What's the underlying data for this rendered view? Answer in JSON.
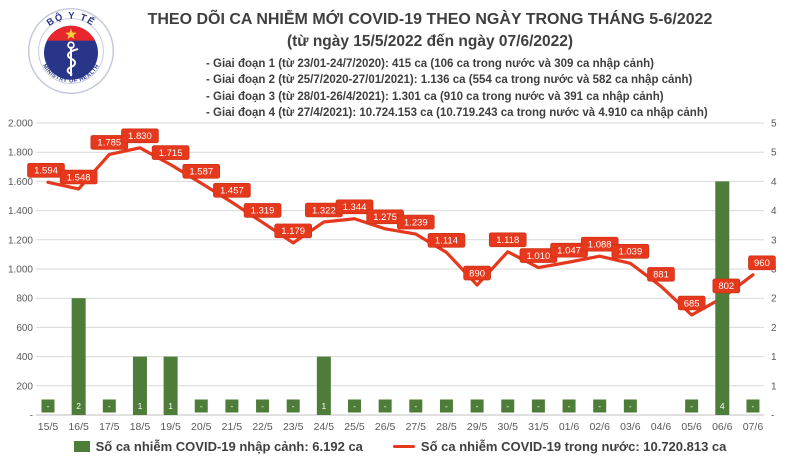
{
  "header": {
    "title_line1": "THEO DÕI CA NHIỄM MỚI COVID-19 THEO NGÀY TRONG THÁNG 5-6/2022",
    "title_line2": "(từ ngày 15/5/2022 đến ngày 07/6/2022)",
    "bullets": [
      "- Giai đoạn 1 (từ 23/01-24/7/2020): 415 ca (106 ca trong nước và 309 ca nhập cảnh)",
      "- Giai đoạn 2 (từ 25/7/2020-27/01/2021): 1.136 ca (554 ca trong nước và 582 ca nhập cảnh)",
      "- Giai đoạn 3 (từ 28/01-26/4/2021): 1.301 ca (910 ca trong nước và 391 ca nhập cảnh)",
      "- Giai đoạn 4 (từ 27/4/2021): 10.724.153 ca (10.719.243 ca trong nước và 4.910 ca nhập cảnh)"
    ]
  },
  "logo": {
    "top_text": "BỘ Y TẾ",
    "bottom_text": "MINISTRY OF HEALTH",
    "navy": "#283589",
    "red": "#e8262d",
    "star_yellow": "#ffd23a"
  },
  "colors": {
    "line_red": "#e5381c",
    "label_box_red": "#e5381c",
    "label_box_border": "#c53015",
    "bar_green": "#4e7c39",
    "grid_gray": "#d9d9d9",
    "axis_gray": "#bfbfbf",
    "tick_text": "#595959"
  },
  "chart_data": {
    "type": "bar",
    "subtype": "combo-bar-line",
    "categories": [
      "15/5",
      "16/5",
      "17/5",
      "18/5",
      "19/5",
      "20/5",
      "21/5",
      "22/5",
      "23/5",
      "24/5",
      "25/5",
      "26/5",
      "27/5",
      "28/5",
      "29/5",
      "30/5",
      "31/5",
      "01/6",
      "02/6",
      "03/6",
      "04/6",
      "05/6",
      "06/6",
      "07/6"
    ],
    "series": [
      {
        "name": "Số ca nhiễm COVID-19 nhập cảnh",
        "type": "bar",
        "axis": "right",
        "values": [
          0,
          2,
          0,
          1,
          1,
          0,
          0,
          0,
          0,
          1,
          0,
          0,
          0,
          0,
          0,
          0,
          0,
          0,
          0,
          0,
          null,
          0,
          4,
          0
        ],
        "labels": [
          "-",
          "2",
          "-",
          "1",
          "1",
          "-",
          "-",
          "-",
          "-",
          "1",
          "-",
          "-",
          "-",
          "-",
          "-",
          "-",
          "-",
          "-",
          "-",
          "-",
          null,
          "-",
          "4",
          "-"
        ]
      },
      {
        "name": "Số ca nhiễm COVID-19 trong nước",
        "type": "line",
        "axis": "left",
        "values": [
          1594,
          1548,
          1785,
          1830,
          1715,
          1587,
          1457,
          1319,
          1179,
          1322,
          1344,
          1275,
          1239,
          1114,
          890,
          1118,
          1010,
          1047,
          1088,
          1039,
          881,
          685,
          802,
          960
        ],
        "labels": [
          "1.594",
          "1.548",
          "1.785",
          "1.830",
          "1.715",
          "1.587",
          "1.457",
          "1.319",
          "1.179",
          "1.322",
          "1.344",
          "1.275",
          "1.239",
          "1.114",
          "890",
          "1.118",
          "1.010",
          "1.047",
          "1.088",
          "1.039",
          "881",
          "685",
          "802",
          "960"
        ]
      }
    ],
    "left_axis": {
      "min": 0,
      "max": 2000,
      "step": 200,
      "tick_labels": [
        "2.000",
        "1.800",
        "1.600",
        "1.400",
        "1.200",
        "1.000",
        "800",
        "600",
        "400",
        "200",
        "-"
      ]
    },
    "right_axis": {
      "min": 0,
      "max": 5,
      "step": 0.5,
      "tick_labels": [
        "5",
        "5",
        "4",
        "4",
        "3",
        "3",
        "2",
        "2",
        "1",
        "1",
        "-"
      ]
    },
    "grid": true,
    "legend_position": "bottom"
  },
  "legend": {
    "bar_label": "Số ca nhiễm COVID-19 nhập cảnh: 6.192 ca",
    "line_label": "Số ca nhiễm COVID-19 trong nước: 10.720.813 ca"
  }
}
